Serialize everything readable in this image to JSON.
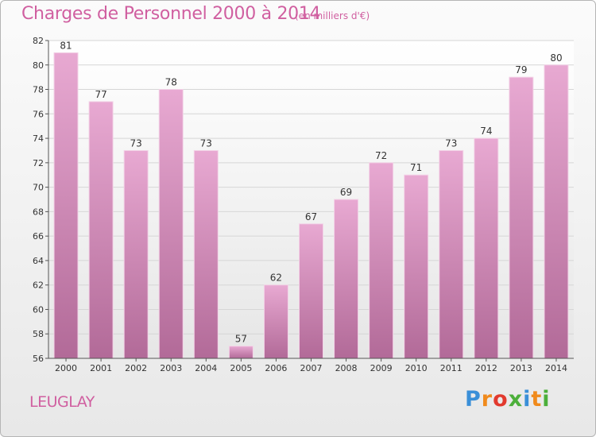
{
  "title": "Charges de Personnel 2000 à 2014",
  "subtitle": "(en milliers d'€)",
  "commune": "LEUGLAY",
  "logo": {
    "text": "Proxiti",
    "letters": [
      "P",
      "r",
      "o",
      "x",
      "i",
      "t",
      "i"
    ],
    "colors": [
      "#3a8fd8",
      "#f08a1c",
      "#e23a2e",
      "#4caf3a",
      "#3a8fd8",
      "#f08a1c",
      "#4caf3a"
    ]
  },
  "colors": {
    "bar_top": "#e8a9d2",
    "bar_bottom": "#b26a98",
    "accent": "#d05fa0"
  },
  "chart_data": {
    "type": "bar",
    "title": "Charges de Personnel 2000 à 2014",
    "subtitle": "(en milliers d'€)",
    "xlabel": "",
    "ylabel": "",
    "categories": [
      "2000",
      "2001",
      "2002",
      "2003",
      "2004",
      "2005",
      "2006",
      "2007",
      "2008",
      "2009",
      "2010",
      "2011",
      "2012",
      "2013",
      "2014"
    ],
    "values": [
      81,
      77,
      73,
      78,
      73,
      57,
      62,
      67,
      69,
      72,
      71,
      73,
      74,
      79,
      80
    ],
    "ylim": [
      56,
      82
    ],
    "yticks": [
      56,
      58,
      60,
      62,
      64,
      66,
      68,
      70,
      72,
      74,
      76,
      78,
      80,
      82
    ],
    "grid": true,
    "data_labels": true
  }
}
